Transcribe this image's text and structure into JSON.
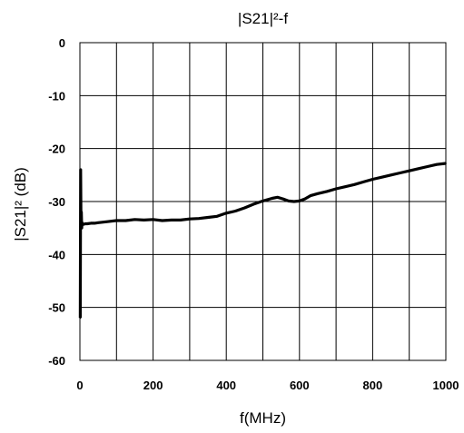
{
  "chart_data": {
    "type": "line",
    "title": "|S21|²-f",
    "xlabel": "f(MHz)",
    "ylabel": "|S21|² (dB)",
    "xlim": [
      0,
      1000
    ],
    "ylim": [
      -60,
      0
    ],
    "xticks": [
      "0",
      "200",
      "400",
      "600",
      "800",
      "1000"
    ],
    "yticks": [
      "0",
      "-10",
      "-20",
      "-30",
      "-40",
      "-50",
      "-60"
    ],
    "grid": true,
    "legend": false,
    "series": [
      {
        "color": "#000000",
        "x": [
          1,
          2,
          3,
          4,
          5,
          6,
          8,
          10,
          15,
          20,
          30,
          40,
          50,
          75,
          100,
          125,
          150,
          175,
          200,
          225,
          250,
          275,
          300,
          325,
          350,
          375,
          400,
          425,
          450,
          475,
          500,
          525,
          540,
          555,
          570,
          585,
          600,
          615,
          630,
          650,
          675,
          700,
          725,
          750,
          775,
          800,
          825,
          850,
          875,
          900,
          925,
          950,
          975,
          1000
        ],
        "y": [
          -52,
          -24,
          -34,
          -32,
          -35,
          -34,
          -34.3,
          -34.3,
          -34.2,
          -34.2,
          -34.1,
          -34.1,
          -34.0,
          -33.8,
          -33.6,
          -33.6,
          -33.4,
          -33.5,
          -33.4,
          -33.6,
          -33.5,
          -33.5,
          -33.3,
          -33.2,
          -33.0,
          -32.8,
          -32.2,
          -31.8,
          -31.2,
          -30.5,
          -29.9,
          -29.4,
          -29.2,
          -29.5,
          -29.9,
          -30.0,
          -29.9,
          -29.5,
          -28.9,
          -28.5,
          -28.1,
          -27.6,
          -27.2,
          -26.8,
          -26.3,
          -25.8,
          -25.4,
          -25.0,
          -24.6,
          -24.2,
          -23.8,
          -23.4,
          -23.0,
          -22.8
        ]
      }
    ]
  }
}
